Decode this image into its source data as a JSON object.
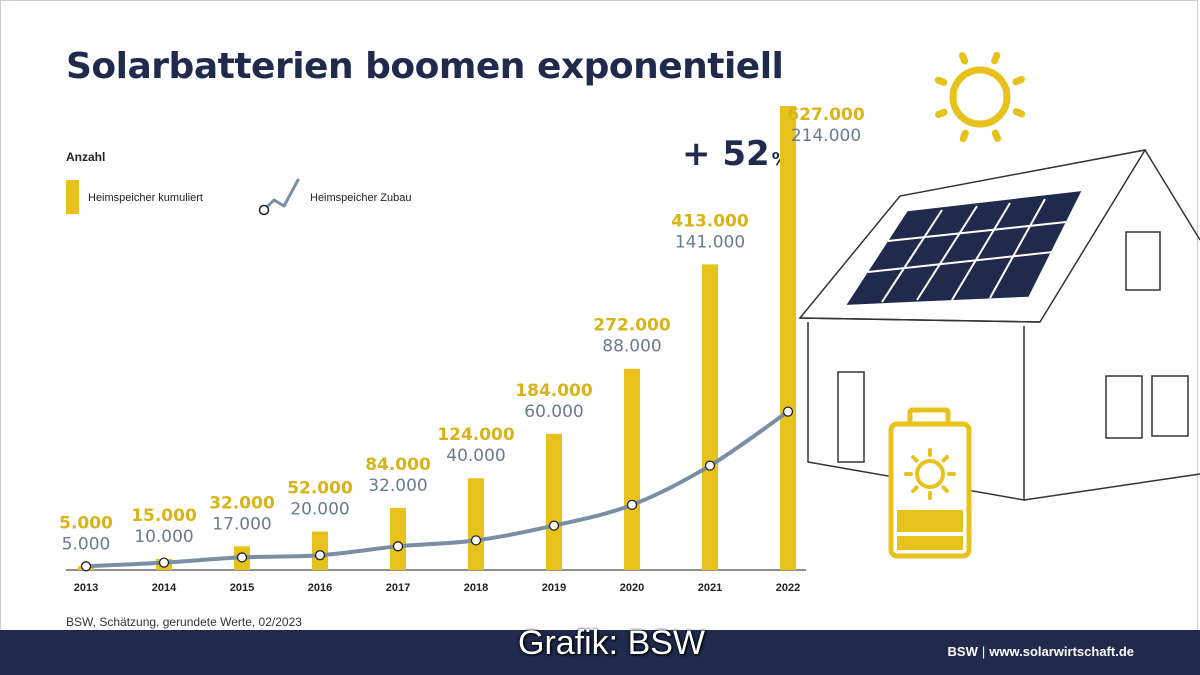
{
  "title": "Solarbatterien boomen exponentiell",
  "legend": {
    "title": "Anzahl",
    "bar_label": "Heimspeicher kumuliert",
    "line_label": "Heimspeicher Zubau"
  },
  "annotation": {
    "value": "+ 52",
    "unit": "%"
  },
  "source": "BSW, Schätzung, gerundete Werte, 02/2023",
  "footer": {
    "brand": "BSW",
    "separator": "|",
    "url": "www.solarwirtschaft.de"
  },
  "overlay_caption": "Grafik: BSW",
  "colors": {
    "bar": "#e8c21c",
    "line": "#7a8ea5",
    "title": "#1f2a4d",
    "footer": "#1f2a4d",
    "label_cumulative": "#d8b418",
    "label_new": "#6b7b8f"
  },
  "icons": [
    "sun-icon",
    "house-with-solar-panels-icon",
    "battery-icon"
  ],
  "chart_data": {
    "type": "bar",
    "categories": [
      "2013",
      "2014",
      "2015",
      "2016",
      "2017",
      "2018",
      "2019",
      "2020",
      "2021",
      "2022"
    ],
    "series": [
      {
        "name": "Heimspeicher kumuliert",
        "type": "bar",
        "values": [
          5000,
          15000,
          32000,
          52000,
          84000,
          124000,
          184000,
          272000,
          413000,
          627000
        ],
        "labels": [
          "5.000",
          "15.000",
          "32.000",
          "52.000",
          "84.000",
          "124.000",
          "184.000",
          "272.000",
          "413.000",
          "627.000"
        ]
      },
      {
        "name": "Heimspeicher Zubau",
        "type": "line",
        "values": [
          5000,
          10000,
          17000,
          20000,
          32000,
          40000,
          60000,
          88000,
          141000,
          214000
        ],
        "labels": [
          "5.000",
          "10.000",
          "17.000",
          "20.000",
          "32.000",
          "40.000",
          "60.000",
          "88.000",
          "141.000",
          "214.000"
        ]
      }
    ],
    "ylim": [
      0,
      627000
    ],
    "grid": false,
    "legend_position": "top-left",
    "title": "Solarbatterien boomen exponentiell",
    "xlabel": "",
    "ylabel": "Anzahl"
  }
}
